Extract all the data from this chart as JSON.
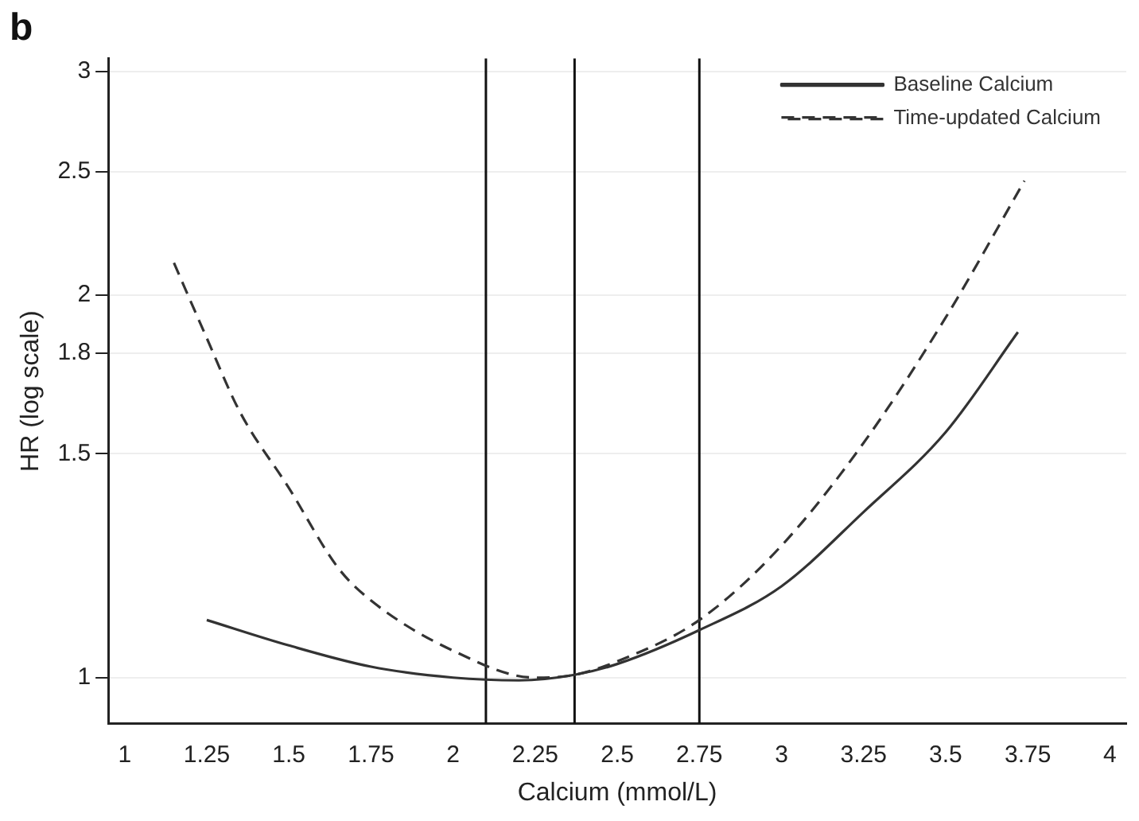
{
  "chart_data": {
    "type": "line",
    "title": "b",
    "xlabel": "Calcium (mmol/L)",
    "ylabel": "HR (log scale)",
    "log": "y",
    "grid": "y",
    "legend": "top right",
    "marker": "none",
    "xlim": [
      0.95,
      4.05
    ],
    "xticks": [
      1,
      1.25,
      1.5,
      1.75,
      2,
      2.25,
      2.5,
      2.75,
      3,
      3.25,
      3.5,
      3.75,
      4
    ],
    "ylim": [
      0.92,
      3.07
    ],
    "yticks": [
      1,
      1.5,
      1.8,
      2,
      2.5,
      3
    ],
    "series": [
      {
        "name": "Baseline Calcium",
        "color": "#333333",
        "line_style": "solid",
        "x": [
          1.25,
          1.5,
          1.75,
          2,
          2.2,
          2.37,
          2.5,
          2.75,
          3,
          3.25,
          3.5,
          3.72
        ],
        "values": [
          1.11,
          1.06,
          1.02,
          1.0,
          0.995,
          1.005,
          1.025,
          1.09,
          1.18,
          1.35,
          1.56,
          1.87
        ]
      },
      {
        "name": "Time-updated Calcium",
        "color": "#333333",
        "line_style": "dashed",
        "x": [
          1.15,
          1.25,
          1.35,
          1.5,
          1.65,
          1.75,
          2,
          2.25,
          2.37,
          2.5,
          2.75,
          3,
          3.25,
          3.5,
          3.74
        ],
        "values": [
          2.12,
          1.85,
          1.62,
          1.41,
          1.22,
          1.15,
          1.05,
          1.0,
          1.005,
          1.03,
          1.11,
          1.27,
          1.53,
          1.92,
          2.46
        ]
      }
    ],
    "ref_lines": [
      {
        "axis": "x",
        "value": 2.1,
        "color": "#111111"
      },
      {
        "axis": "x",
        "value": 2.37,
        "color": "#111111"
      },
      {
        "axis": "x",
        "value": 2.75,
        "color": "#111111"
      }
    ]
  }
}
